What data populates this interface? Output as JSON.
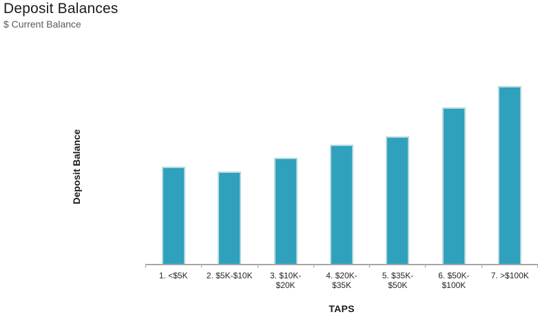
{
  "header": {
    "title": "Deposit Balances",
    "subtitle": "$ Current Balance"
  },
  "axes": {
    "y_label": "Deposit Balance",
    "x_label": "TAPS"
  },
  "x_tick_labels": [
    {
      "line1": "1. <$5K",
      "line2": ""
    },
    {
      "line1": "2. $5K-$10K",
      "line2": ""
    },
    {
      "line1": "3. $10K-",
      "line2": "$20K"
    },
    {
      "line1": "4. $20K-",
      "line2": "$35K"
    },
    {
      "line1": "5. $35K-",
      "line2": "$50K"
    },
    {
      "line1": "6. $50K-",
      "line2": "$100K"
    },
    {
      "line1": "7. >$100K",
      "line2": ""
    }
  ],
  "colors": {
    "bar_fill": "#2fa1bc",
    "bar_edge": "#b2d8e1",
    "axis_line": "#a6a6a6",
    "title_text": "#1a1a1a",
    "subtitle_text": "#5a5a5a",
    "tick_label_text": "#252525"
  },
  "chart_data": {
    "type": "bar",
    "title": "Deposit Balances",
    "subtitle": "$ Current Balance",
    "xlabel": "TAPS",
    "ylabel": "Deposit Balance",
    "categories": [
      "1. <$5K",
      "2. $5K-$10K",
      "3. $10K-$20K",
      "4. $20K-$35K",
      "5. $35K-$50K",
      "6. $50K-$100K",
      "7. >$100K"
    ],
    "values": [
      55,
      52,
      60,
      67,
      72,
      88,
      100
    ],
    "value_note": "No y-axis scale, gridlines or data labels are shown; values are bar heights as percent of the tallest bar",
    "ylim": [
      0,
      100
    ],
    "grid": false,
    "legend": false,
    "bar_color": "#2fa1bc"
  }
}
